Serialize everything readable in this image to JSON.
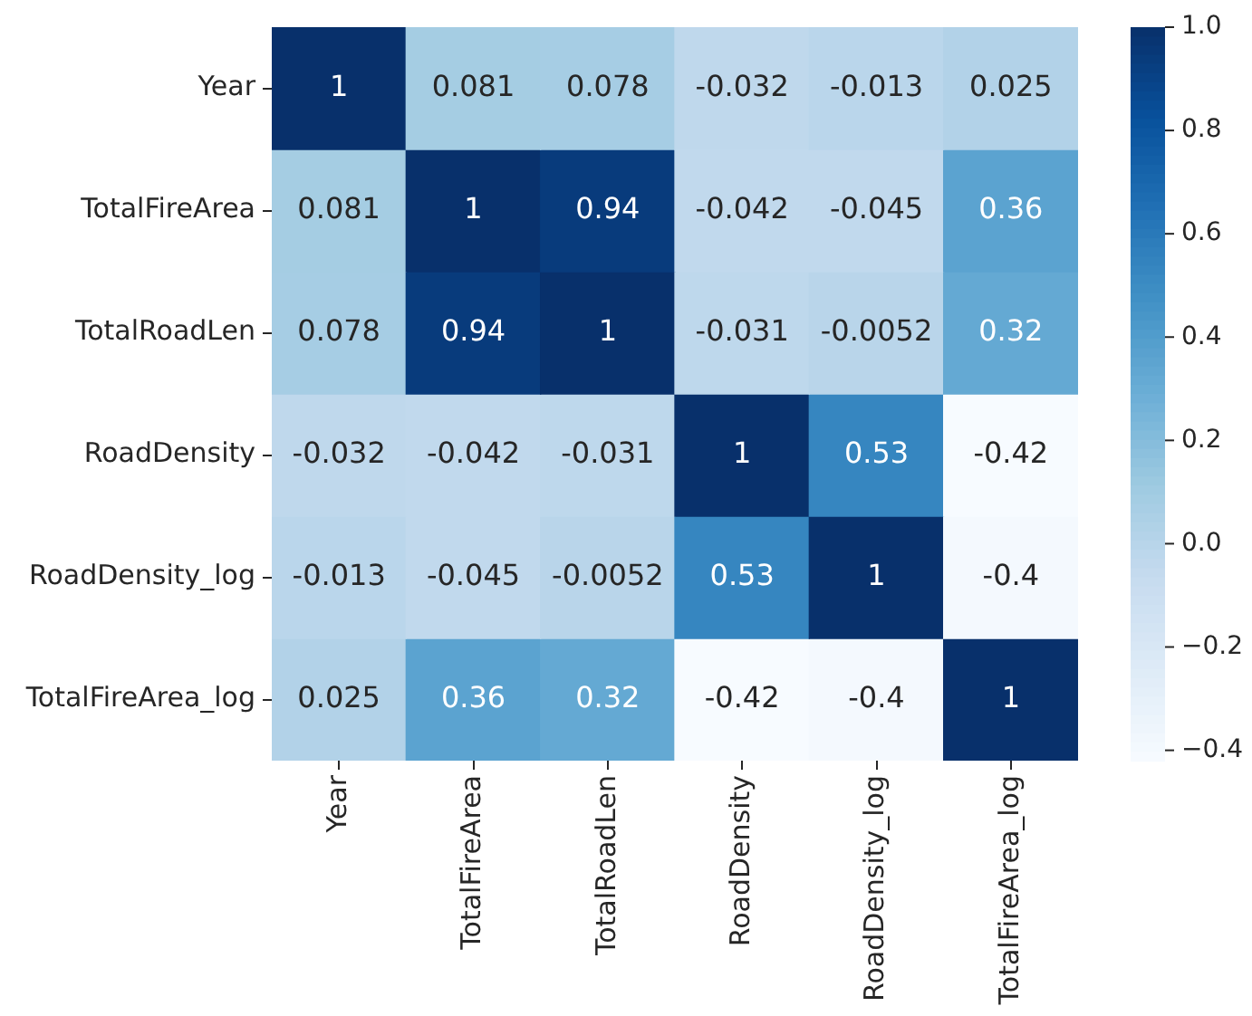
{
  "chart_data": {
    "type": "heatmap",
    "categories": [
      "Year",
      "TotalFireArea",
      "TotalRoadLen",
      "RoadDensity",
      "RoadDensity_log",
      "TotalFireArea_log"
    ],
    "y_categories": [
      "Year",
      "TotalFireArea",
      "TotalRoadLen",
      "RoadDensity",
      "RoadDensity_log",
      "TotalFireArea_log"
    ],
    "cells": [
      [
        1,
        0.081,
        0.078,
        -0.032,
        -0.013,
        0.025
      ],
      [
        0.081,
        1,
        0.94,
        -0.042,
        -0.045,
        0.36
      ],
      [
        0.078,
        0.94,
        1,
        -0.031,
        -0.0052,
        0.32
      ],
      [
        -0.032,
        -0.042,
        -0.031,
        1,
        0.53,
        -0.42
      ],
      [
        -0.013,
        -0.045,
        -0.0052,
        0.53,
        1,
        -0.4
      ],
      [
        0.025,
        0.36,
        0.32,
        -0.42,
        -0.4,
        1
      ]
    ],
    "clim": [
      -0.42,
      1
    ],
    "cticks": [
      {
        "value": 1,
        "label": "1.0"
      },
      {
        "value": 0.8,
        "label": "0.8"
      },
      {
        "value": 0.6,
        "label": "0.6"
      },
      {
        "value": 0.4,
        "label": "0.4"
      },
      {
        "value": 0.2,
        "label": "0.2"
      },
      {
        "value": 0,
        "label": "0.0"
      },
      {
        "value": -0.2,
        "label": "−0.2"
      },
      {
        "value": -0.4,
        "label": "−0.4"
      }
    ],
    "data_labels": true
  }
}
